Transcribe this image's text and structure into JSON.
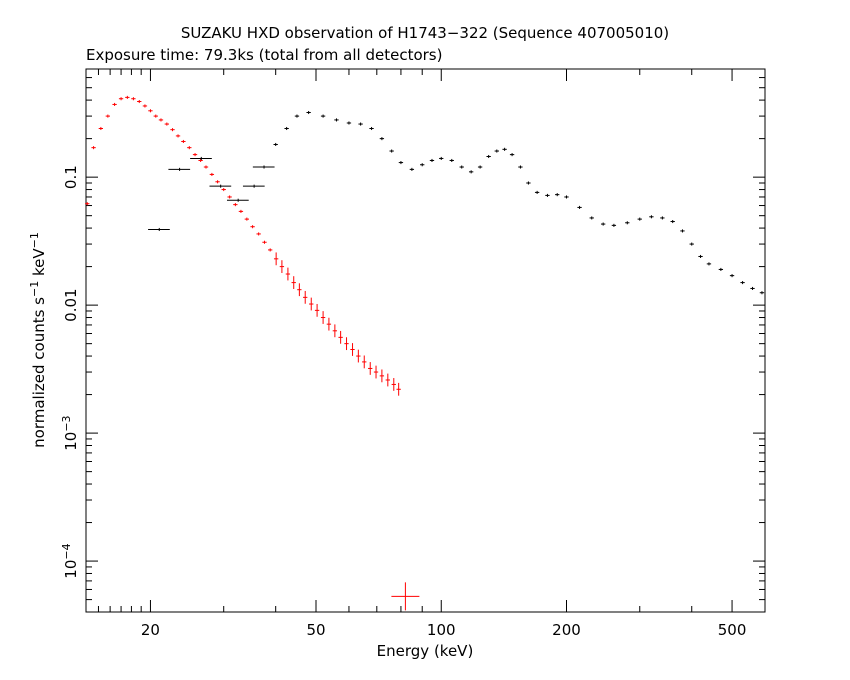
{
  "chart_data": {
    "type": "scatter",
    "title": "SUZAKU HXD observation of H1743−322 (Sequence 407005010)",
    "subtitle": "Exposure time: 79.3ks (total from all detectors)",
    "xlabel": "Energy (keV)",
    "ylabel": "normalized counts s",
    "ylabel_sup1": "−1",
    "ylabel_mid": " keV",
    "ylabel_sup2": "−1",
    "x_scale": "log",
    "y_scale": "log",
    "xlim": [
      14,
      600
    ],
    "ylim": [
      4e-05,
      0.7
    ],
    "x_ticks": [
      {
        "value": 20,
        "label": "20"
      },
      {
        "value": 50,
        "label": "50"
      },
      {
        "value": 100,
        "label": "100"
      },
      {
        "value": 200,
        "label": "200"
      },
      {
        "value": 500,
        "label": "500"
      }
    ],
    "y_ticks": [
      {
        "value": 0.1,
        "label": "0.1",
        "exp": ""
      },
      {
        "value": 0.01,
        "label": "0.01",
        "exp": ""
      },
      {
        "value": 0.001,
        "label": "10",
        "exp": "−3"
      },
      {
        "value": 0.0001,
        "label": "10",
        "exp": "−4"
      }
    ],
    "grid": false,
    "series": [
      {
        "color": "#ff0000",
        "x_err_frac": 0.012,
        "points": [
          [
            14.1,
            0.062
          ],
          [
            14.6,
            0.17
          ],
          [
            15.2,
            0.24
          ],
          [
            15.8,
            0.3
          ],
          [
            16.4,
            0.37
          ],
          [
            17.0,
            0.41
          ],
          [
            17.6,
            0.42
          ],
          [
            18.2,
            0.41
          ],
          [
            18.8,
            0.39
          ],
          [
            19.4,
            0.36
          ],
          [
            20.0,
            0.33
          ],
          [
            20.6,
            0.3
          ],
          [
            21.2,
            0.28
          ],
          [
            21.9,
            0.26
          ],
          [
            22.6,
            0.235
          ],
          [
            23.3,
            0.21
          ],
          [
            24.0,
            0.19
          ],
          [
            24.8,
            0.17
          ],
          [
            25.6,
            0.15
          ],
          [
            26.4,
            0.135
          ],
          [
            27.2,
            0.12
          ],
          [
            28.1,
            0.105
          ],
          [
            29.0,
            0.092
          ],
          [
            30.0,
            0.08
          ],
          [
            31.0,
            0.07
          ],
          [
            32.0,
            0.061
          ],
          [
            33.0,
            0.054
          ],
          [
            34.1,
            0.047
          ],
          [
            35.2,
            0.041
          ],
          [
            36.4,
            0.036
          ],
          [
            37.6,
            0.031
          ],
          [
            38.8,
            0.027
          ],
          [
            40.1,
            0.023
          ],
          [
            41.4,
            0.02
          ],
          [
            42.8,
            0.0175
          ],
          [
            44.2,
            0.015
          ],
          [
            45.6,
            0.0132
          ],
          [
            47.1,
            0.0115
          ],
          [
            48.7,
            0.0102
          ],
          [
            50.3,
            0.0091
          ],
          [
            52.0,
            0.008
          ],
          [
            53.7,
            0.0071
          ],
          [
            55.5,
            0.0063
          ],
          [
            57.3,
            0.0056
          ],
          [
            59.2,
            0.005
          ],
          [
            61.2,
            0.0045
          ],
          [
            63.2,
            0.004
          ],
          [
            65.3,
            0.0036
          ],
          [
            67.5,
            0.0032
          ],
          [
            69.7,
            0.003
          ],
          [
            72.0,
            0.0028
          ],
          [
            74.4,
            0.0026
          ],
          [
            76.9,
            0.0024
          ],
          [
            79.0,
            0.0022
          ],
          [
            82.0,
            5.3e-05
          ]
        ]
      },
      {
        "color": "#000000",
        "x_err_frac": 0.012,
        "points": [
          [
            21.0,
            0.039
          ],
          [
            23.5,
            0.115
          ],
          [
            26.5,
            0.14
          ],
          [
            29.5,
            0.085
          ],
          [
            32.5,
            0.066
          ],
          [
            35.5,
            0.085
          ],
          [
            37.5,
            0.12
          ],
          [
            40.0,
            0.18
          ],
          [
            42.5,
            0.24
          ],
          [
            45.0,
            0.3
          ],
          [
            48.0,
            0.32
          ],
          [
            52.0,
            0.3
          ],
          [
            56.0,
            0.28
          ],
          [
            60.0,
            0.265
          ],
          [
            64.0,
            0.26
          ],
          [
            68.0,
            0.24
          ],
          [
            72.0,
            0.2
          ],
          [
            76.0,
            0.16
          ],
          [
            80.0,
            0.13
          ],
          [
            85.0,
            0.115
          ],
          [
            90.0,
            0.125
          ],
          [
            95.0,
            0.135
          ],
          [
            100.0,
            0.14
          ],
          [
            106.0,
            0.135
          ],
          [
            112.0,
            0.12
          ],
          [
            118.0,
            0.11
          ],
          [
            124.0,
            0.12
          ],
          [
            130.0,
            0.145
          ],
          [
            136.0,
            0.16
          ],
          [
            142.0,
            0.165
          ],
          [
            148.0,
            0.15
          ],
          [
            155.0,
            0.12
          ],
          [
            162.0,
            0.09
          ],
          [
            170.0,
            0.076
          ],
          [
            180.0,
            0.072
          ],
          [
            190.0,
            0.073
          ],
          [
            200.0,
            0.07
          ],
          [
            215.0,
            0.058
          ],
          [
            230.0,
            0.048
          ],
          [
            245.0,
            0.043
          ],
          [
            260.0,
            0.042
          ],
          [
            280.0,
            0.044
          ],
          [
            300.0,
            0.047
          ],
          [
            320.0,
            0.049
          ],
          [
            340.0,
            0.048
          ],
          [
            360.0,
            0.045
          ],
          [
            380.0,
            0.038
          ],
          [
            400.0,
            0.03
          ],
          [
            420.0,
            0.024
          ],
          [
            440.0,
            0.021
          ],
          [
            470.0,
            0.019
          ],
          [
            500.0,
            0.017
          ],
          [
            530.0,
            0.015
          ],
          [
            560.0,
            0.0135
          ],
          [
            590.0,
            0.0125
          ]
        ]
      }
    ]
  }
}
